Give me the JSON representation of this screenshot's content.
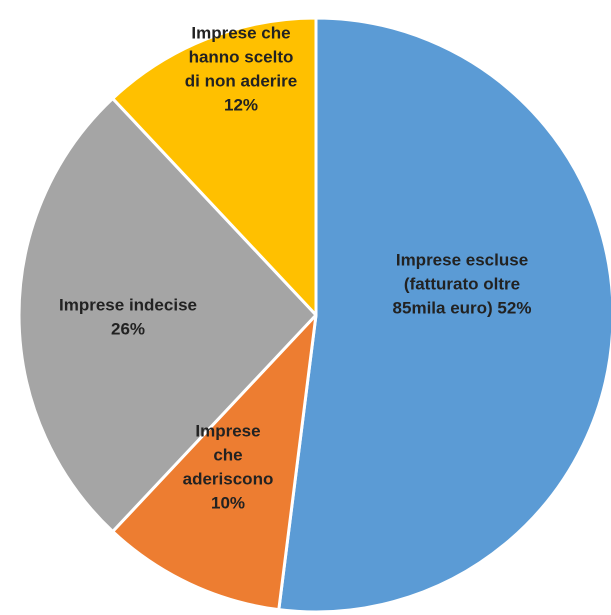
{
  "chart_data": {
    "type": "pie",
    "slices": [
      {
        "label_lines": [
          "Imprese escluse",
          "(fatturato oltre",
          "85mila euro) 52%"
        ],
        "value": 52,
        "color": "#5b9bd5"
      },
      {
        "label_lines": [
          "Imprese",
          "che",
          "aderiscono",
          "10%"
        ],
        "value": 10,
        "color": "#ed7d31"
      },
      {
        "label_lines": [
          "Imprese indecise",
          "26%"
        ],
        "value": 26,
        "color": "#a5a5a5"
      },
      {
        "label_lines": [
          "Imprese che",
          "hanno scelto",
          "di non aderire",
          "12%"
        ],
        "value": 12,
        "color": "#ffc000"
      }
    ],
    "start_angle_deg": 0,
    "direction": "clockwise",
    "slice_border_color": "#ffffff",
    "legend": "none",
    "title": ""
  }
}
